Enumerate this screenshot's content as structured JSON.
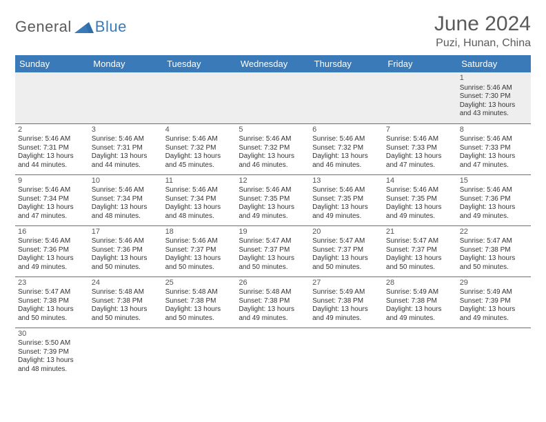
{
  "brand": {
    "part1": "General",
    "part2": "Blue"
  },
  "title": "June 2024",
  "location": "Puzi, Hunan, China",
  "colors": {
    "header_bg": "#3a7ab8",
    "header_text": "#ffffff",
    "title_color": "#5a5a5a",
    "grid_line": "#3a7ab8",
    "wk1_bg": "#eeeeee",
    "body_text": "#333333"
  },
  "day_headers": [
    "Sunday",
    "Monday",
    "Tuesday",
    "Wednesday",
    "Thursday",
    "Friday",
    "Saturday"
  ],
  "weeks": [
    [
      null,
      null,
      null,
      null,
      null,
      null,
      {
        "n": "1",
        "sr": "Sunrise: 5:46 AM",
        "ss": "Sunset: 7:30 PM",
        "dl": "Daylight: 13 hours and 43 minutes."
      }
    ],
    [
      {
        "n": "2",
        "sr": "Sunrise: 5:46 AM",
        "ss": "Sunset: 7:31 PM",
        "dl": "Daylight: 13 hours and 44 minutes."
      },
      {
        "n": "3",
        "sr": "Sunrise: 5:46 AM",
        "ss": "Sunset: 7:31 PM",
        "dl": "Daylight: 13 hours and 44 minutes."
      },
      {
        "n": "4",
        "sr": "Sunrise: 5:46 AM",
        "ss": "Sunset: 7:32 PM",
        "dl": "Daylight: 13 hours and 45 minutes."
      },
      {
        "n": "5",
        "sr": "Sunrise: 5:46 AM",
        "ss": "Sunset: 7:32 PM",
        "dl": "Daylight: 13 hours and 46 minutes."
      },
      {
        "n": "6",
        "sr": "Sunrise: 5:46 AM",
        "ss": "Sunset: 7:32 PM",
        "dl": "Daylight: 13 hours and 46 minutes."
      },
      {
        "n": "7",
        "sr": "Sunrise: 5:46 AM",
        "ss": "Sunset: 7:33 PM",
        "dl": "Daylight: 13 hours and 47 minutes."
      },
      {
        "n": "8",
        "sr": "Sunrise: 5:46 AM",
        "ss": "Sunset: 7:33 PM",
        "dl": "Daylight: 13 hours and 47 minutes."
      }
    ],
    [
      {
        "n": "9",
        "sr": "Sunrise: 5:46 AM",
        "ss": "Sunset: 7:34 PM",
        "dl": "Daylight: 13 hours and 47 minutes."
      },
      {
        "n": "10",
        "sr": "Sunrise: 5:46 AM",
        "ss": "Sunset: 7:34 PM",
        "dl": "Daylight: 13 hours and 48 minutes."
      },
      {
        "n": "11",
        "sr": "Sunrise: 5:46 AM",
        "ss": "Sunset: 7:34 PM",
        "dl": "Daylight: 13 hours and 48 minutes."
      },
      {
        "n": "12",
        "sr": "Sunrise: 5:46 AM",
        "ss": "Sunset: 7:35 PM",
        "dl": "Daylight: 13 hours and 49 minutes."
      },
      {
        "n": "13",
        "sr": "Sunrise: 5:46 AM",
        "ss": "Sunset: 7:35 PM",
        "dl": "Daylight: 13 hours and 49 minutes."
      },
      {
        "n": "14",
        "sr": "Sunrise: 5:46 AM",
        "ss": "Sunset: 7:35 PM",
        "dl": "Daylight: 13 hours and 49 minutes."
      },
      {
        "n": "15",
        "sr": "Sunrise: 5:46 AM",
        "ss": "Sunset: 7:36 PM",
        "dl": "Daylight: 13 hours and 49 minutes."
      }
    ],
    [
      {
        "n": "16",
        "sr": "Sunrise: 5:46 AM",
        "ss": "Sunset: 7:36 PM",
        "dl": "Daylight: 13 hours and 49 minutes."
      },
      {
        "n": "17",
        "sr": "Sunrise: 5:46 AM",
        "ss": "Sunset: 7:36 PM",
        "dl": "Daylight: 13 hours and 50 minutes."
      },
      {
        "n": "18",
        "sr": "Sunrise: 5:46 AM",
        "ss": "Sunset: 7:37 PM",
        "dl": "Daylight: 13 hours and 50 minutes."
      },
      {
        "n": "19",
        "sr": "Sunrise: 5:47 AM",
        "ss": "Sunset: 7:37 PM",
        "dl": "Daylight: 13 hours and 50 minutes."
      },
      {
        "n": "20",
        "sr": "Sunrise: 5:47 AM",
        "ss": "Sunset: 7:37 PM",
        "dl": "Daylight: 13 hours and 50 minutes."
      },
      {
        "n": "21",
        "sr": "Sunrise: 5:47 AM",
        "ss": "Sunset: 7:37 PM",
        "dl": "Daylight: 13 hours and 50 minutes."
      },
      {
        "n": "22",
        "sr": "Sunrise: 5:47 AM",
        "ss": "Sunset: 7:38 PM",
        "dl": "Daylight: 13 hours and 50 minutes."
      }
    ],
    [
      {
        "n": "23",
        "sr": "Sunrise: 5:47 AM",
        "ss": "Sunset: 7:38 PM",
        "dl": "Daylight: 13 hours and 50 minutes."
      },
      {
        "n": "24",
        "sr": "Sunrise: 5:48 AM",
        "ss": "Sunset: 7:38 PM",
        "dl": "Daylight: 13 hours and 50 minutes."
      },
      {
        "n": "25",
        "sr": "Sunrise: 5:48 AM",
        "ss": "Sunset: 7:38 PM",
        "dl": "Daylight: 13 hours and 50 minutes."
      },
      {
        "n": "26",
        "sr": "Sunrise: 5:48 AM",
        "ss": "Sunset: 7:38 PM",
        "dl": "Daylight: 13 hours and 49 minutes."
      },
      {
        "n": "27",
        "sr": "Sunrise: 5:49 AM",
        "ss": "Sunset: 7:38 PM",
        "dl": "Daylight: 13 hours and 49 minutes."
      },
      {
        "n": "28",
        "sr": "Sunrise: 5:49 AM",
        "ss": "Sunset: 7:38 PM",
        "dl": "Daylight: 13 hours and 49 minutes."
      },
      {
        "n": "29",
        "sr": "Sunrise: 5:49 AM",
        "ss": "Sunset: 7:39 PM",
        "dl": "Daylight: 13 hours and 49 minutes."
      }
    ],
    [
      {
        "n": "30",
        "sr": "Sunrise: 5:50 AM",
        "ss": "Sunset: 7:39 PM",
        "dl": "Daylight: 13 hours and 48 minutes."
      },
      null,
      null,
      null,
      null,
      null,
      null
    ]
  ]
}
